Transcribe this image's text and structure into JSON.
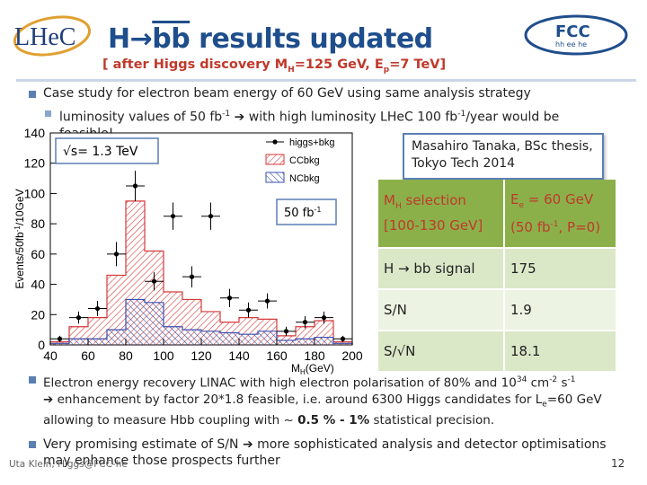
{
  "header": {
    "title_prefix": "H",
    "title_arrow": "→",
    "title_bb": "bb",
    "title_rest": " results updated",
    "subtitle": "[ after Higgs discovery M",
    "subtitle_sub1": "H",
    "subtitle_mid": "=125 GeV,  E",
    "subtitle_sub2": "p",
    "subtitle_end": "=7 TeV]",
    "logo_left_text": "LHeC",
    "logo_right_text": "FCC",
    "logo_right_sub": "hh ee he"
  },
  "bullets": {
    "b1": "Case study for electron beam energy of 60 GeV using same analysis strategy",
    "b2_part1": "luminosity values of 50 fb",
    "b2_sup1": "-1",
    "b2_part2": "  with high luminosity LHeC 100 fb",
    "b2_sup2": "-1",
    "b2_part3": "/year would be feasible!",
    "b3_part1": "Electron energy recovery LINAC with high electron polarisation of 80% and 10",
    "b3_sup1": "34",
    "b3_part2": " cm",
    "b3_sup2": "-2",
    "b3_part3": " s",
    "b3_sup3": "-1",
    "b3_part4": " enhancement by factor 20*1.8 feasible, i.e. around 6300 Higgs candidates for L",
    "b3_sub1": "e",
    "b3_part5": "=60 GeV allowing to measure Hbb coupling  with ~ ",
    "b3_bold": "0.5 % - 1%",
    "b3_part6": " statistical precision.",
    "b4_part1": "Very promising estimate of S/N ",
    "b4_part2": " more sophisticated analysis and detector optimisations  may enhance those prospects further"
  },
  "citation": {
    "line1": "Masahiro Tanaka, BSc thesis,",
    "line2": "Tokyo Tech 2014"
  },
  "table": {
    "header_left_line1": "M",
    "header_left_sub": "H",
    "header_left_line1b": " selection",
    "header_left_line2": "[100-130 GeV]",
    "header_right_line1": "E",
    "header_right_sub": "e",
    "header_right_line1b": " = 60 GeV",
    "header_right_line2a": "(50 fb",
    "header_right_sup": "-1",
    "header_right_line2b": ", P=0)",
    "rows": [
      {
        "label": "H → bb signal",
        "value": "175"
      },
      {
        "label": "S/N",
        "value": "1.9"
      },
      {
        "label": "S/√N",
        "value": "18.1"
      }
    ]
  },
  "footer": {
    "left": "Uta Klein, Higgs@FCC-he",
    "page": "12"
  },
  "chart_data": {
    "type": "bar",
    "title": "",
    "xlabel": "M",
    "xlabel_sub": "H",
    "xlabel_unit": "(GeV)",
    "ylabel": "Events/50fb",
    "ylabel_sup": "-1",
    "ylabel_unit": "/10GeV",
    "xlim": [
      40,
      200
    ],
    "ylim": [
      0,
      140
    ],
    "xticks": [
      "40",
      "60",
      "80",
      "100",
      "120",
      "140",
      "160",
      "180",
      "200"
    ],
    "yticks": [
      "0",
      "20",
      "40",
      "60",
      "80",
      "100",
      "120",
      "140"
    ],
    "bin_width": 10,
    "bins": [
      40,
      50,
      60,
      70,
      80,
      90,
      100,
      110,
      120,
      130,
      140,
      150,
      160,
      170,
      180,
      190
    ],
    "annotation_energy": "√s= 1.3 TeV",
    "annotation_lumi": "50 fb",
    "annotation_lumi_sup": "-1",
    "legend": {
      "position": "top-right"
    },
    "series": [
      {
        "name": "higgs+bkg",
        "style": "points",
        "x": [
          45,
          55,
          65,
          75,
          85,
          95,
          105,
          115,
          125,
          135,
          145,
          155,
          165,
          175,
          185,
          195
        ],
        "values": [
          4,
          18,
          24,
          60,
          105,
          42,
          85,
          45,
          85,
          31,
          23,
          29,
          9,
          15,
          18,
          4
        ],
        "errors": [
          2,
          4,
          5,
          8,
          10,
          6,
          9,
          7,
          9,
          6,
          5,
          5,
          3,
          4,
          4,
          2
        ]
      },
      {
        "name": "CCbkg",
        "style": "hatch-red",
        "values": [
          2,
          12,
          18,
          46,
          95,
          62,
          35,
          30,
          22,
          15,
          18,
          17,
          6,
          12,
          16,
          2
        ]
      },
      {
        "name": "NCbkg",
        "style": "hatch-blue",
        "values": [
          1,
          4,
          4,
          10,
          30,
          28,
          12,
          10,
          9,
          8,
          7,
          9,
          3,
          4,
          5,
          1
        ]
      }
    ]
  }
}
